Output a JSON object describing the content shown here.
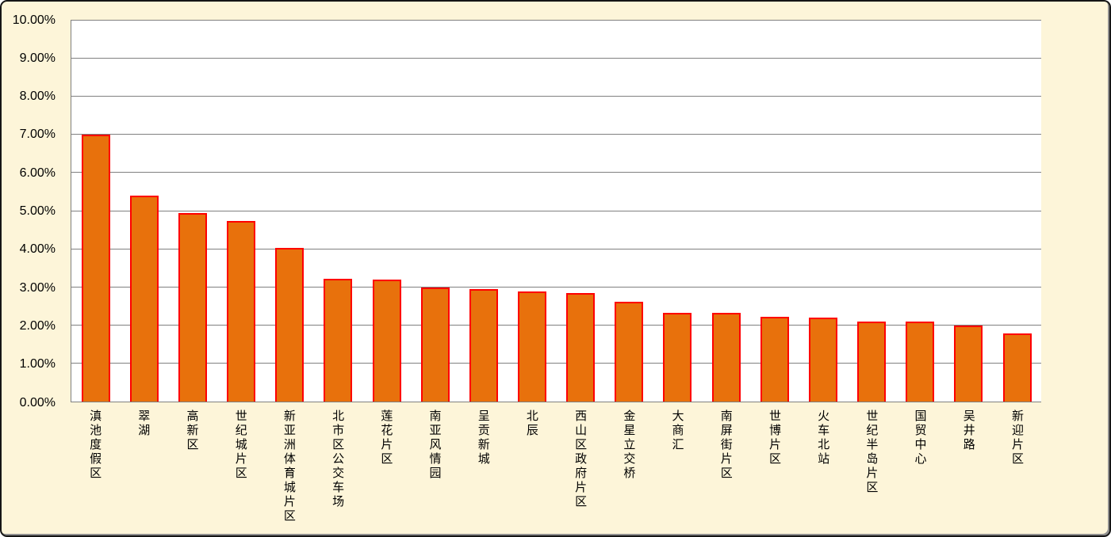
{
  "chart_data": {
    "type": "bar",
    "title": "",
    "xlabel": "",
    "ylabel": "",
    "categories": [
      "滇池度假区",
      "翠湖",
      "高新区",
      "世纪城片区",
      "新亚洲体育城片区",
      "北市区公交车场",
      "莲花片区",
      "南亚风情园",
      "呈贡新城",
      "北辰",
      "西山区政府片区",
      "金星立交桥",
      "大商汇",
      "南屏街片区",
      "世博片区",
      "火车北站",
      "世纪半岛片区",
      "国贸中心",
      "吴井路",
      "新迎片区"
    ],
    "values": [
      7.0,
      5.4,
      4.95,
      4.75,
      4.04,
      3.22,
      3.2,
      3.0,
      2.95,
      2.88,
      2.84,
      2.63,
      2.32,
      2.32,
      2.23,
      2.21,
      2.1,
      2.1,
      2.0,
      1.78
    ],
    "value_unit": "%",
    "ylim": [
      0,
      10
    ],
    "y_ticks": [
      "0.00%",
      "1.00%",
      "2.00%",
      "3.00%",
      "4.00%",
      "5.00%",
      "6.00%",
      "7.00%",
      "8.00%",
      "9.00%",
      "10.00%"
    ],
    "grid": true,
    "legend": "none",
    "colors": {
      "bar_fill": "#E8710C",
      "bar_border": "#FF0000",
      "gridline": "#808080",
      "plot_background": "#FFFFFF",
      "chart_background": "#FDF5D9",
      "frame_border": "#151515",
      "text": "#000000"
    }
  }
}
